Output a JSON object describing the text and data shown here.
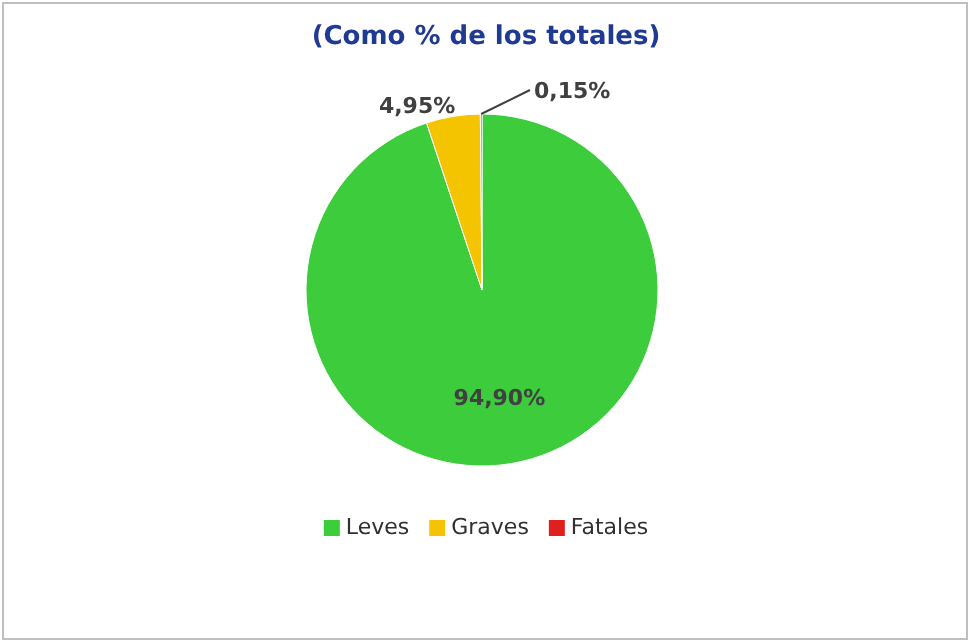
{
  "chart_data": {
    "type": "pie",
    "title": "(Como % de los totales)",
    "categories": [
      "Leves",
      "Graves",
      "Fatales"
    ],
    "values": [
      94.9,
      4.95,
      0.15
    ],
    "value_labels": [
      "94,90%",
      "4,95%",
      "0,15%"
    ],
    "colors": [
      "#3ccc3c",
      "#f5c400",
      "#e02020"
    ],
    "legend": "bottom"
  }
}
